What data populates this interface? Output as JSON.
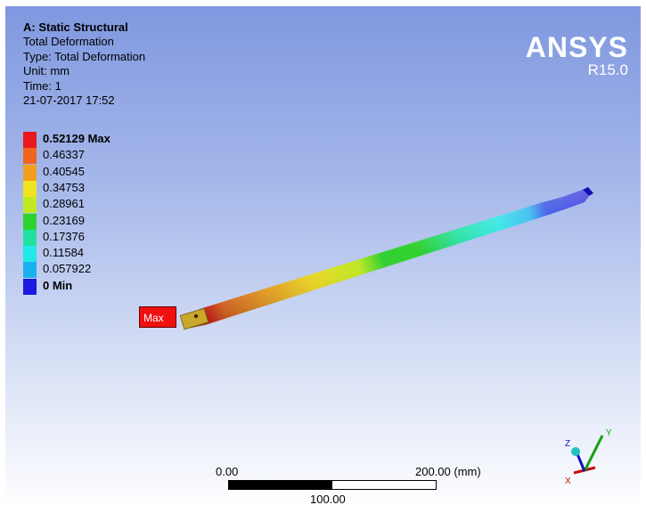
{
  "header": {
    "title": "A: Static Structural",
    "result": "Total Deformation",
    "type": "Type: Total Deformation",
    "unit": "Unit: mm",
    "time": "Time: 1",
    "timestamp": "21-07-2017 17:52"
  },
  "logo": {
    "name": "ANSYS",
    "version": "R15.0"
  },
  "legend": [
    {
      "label": "0.52129 Max",
      "color": "#e8181c"
    },
    {
      "label": "0.46337",
      "color": "#f0661e"
    },
    {
      "label": "0.40545",
      "color": "#f0a01e"
    },
    {
      "label": "0.34753",
      "color": "#f0e41e"
    },
    {
      "label": "0.28961",
      "color": "#c0ea1e"
    },
    {
      "label": "0.23169",
      "color": "#2ed22e"
    },
    {
      "label": "0.17376",
      "color": "#22e0a0"
    },
    {
      "label": "0.11584",
      "color": "#22e8e8"
    },
    {
      "label": "0.057922",
      "color": "#1ab0ee"
    },
    {
      "label": "0 Min",
      "color": "#1a1ae0"
    }
  ],
  "probe": {
    "label": "Max"
  },
  "scale_bar": {
    "start": "0.00",
    "mid": "100.00",
    "end": "200.00 (mm)"
  },
  "triad": {
    "x": "X",
    "y": "Y",
    "z": "Z"
  }
}
